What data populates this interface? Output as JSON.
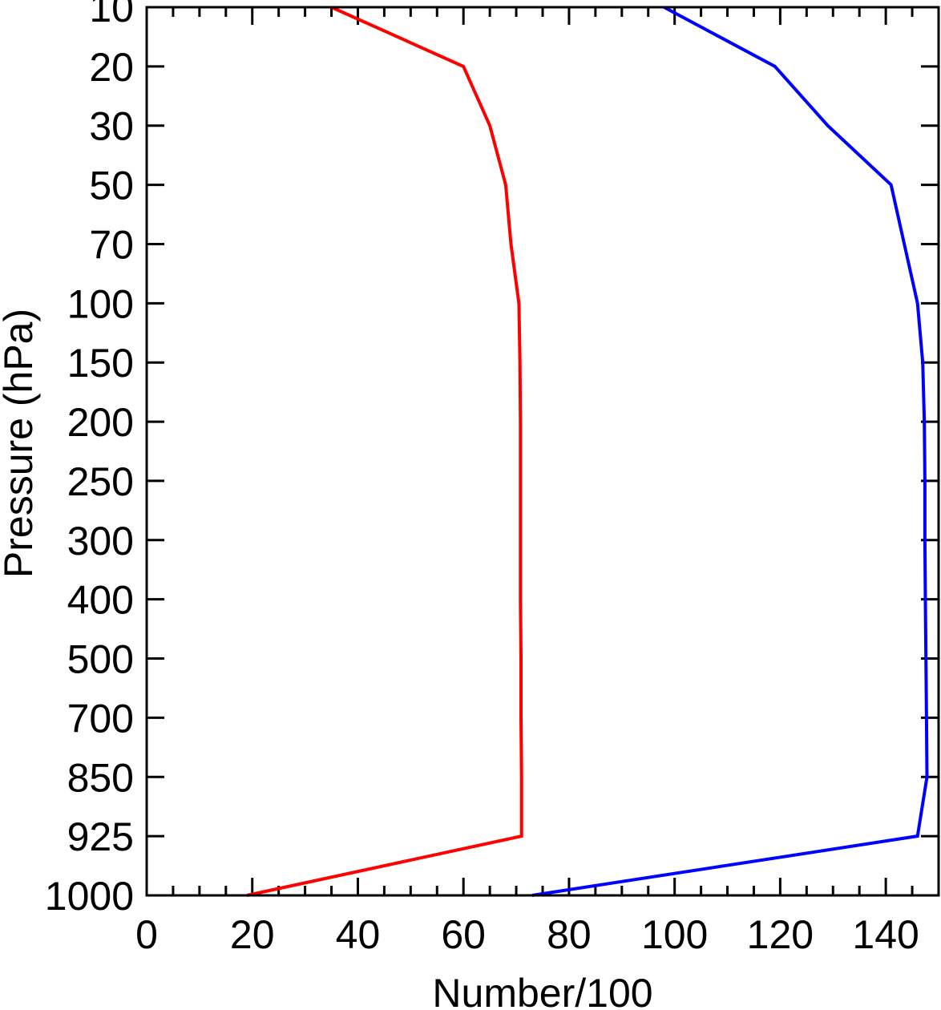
{
  "chart_data": {
    "type": "line",
    "title": "",
    "xlabel": "Number/100",
    "ylabel": "Pressure (hPa)",
    "xlim": [
      0,
      150
    ],
    "x_ticks": [
      0,
      20,
      40,
      60,
      80,
      100,
      120,
      140
    ],
    "x_tick_labels": [
      "0",
      "20",
      "40",
      "60",
      "80",
      "100",
      "120",
      "140"
    ],
    "y_levels": [
      10,
      20,
      30,
      50,
      70,
      100,
      150,
      200,
      250,
      300,
      400,
      500,
      700,
      850,
      925,
      1000
    ],
    "y_tick_labels": [
      "10",
      "20",
      "30",
      "50",
      "70",
      "100",
      "150",
      "200",
      "250",
      "300",
      "400",
      "500",
      "700",
      "850",
      "925",
      "1000"
    ],
    "y_order": "top-to-bottom",
    "grid": false,
    "legend": "none",
    "series": [
      {
        "color": "#ff0000",
        "pressure": [
          10,
          20,
          30,
          50,
          70,
          100,
          150,
          200,
          250,
          300,
          400,
          500,
          700,
          850,
          925,
          1000
        ],
        "values": [
          35,
          60,
          65,
          68,
          69,
          70.5,
          70.7,
          70.8,
          70.8,
          70.8,
          70.8,
          70.9,
          70.9,
          71,
          71,
          19
        ]
      },
      {
        "color": "#0000ff",
        "pressure": [
          10,
          20,
          30,
          50,
          70,
          100,
          150,
          200,
          250,
          300,
          400,
          500,
          700,
          850,
          925,
          1000
        ],
        "values": [
          98,
          119,
          129,
          141,
          143.5,
          146,
          147,
          147.3,
          147.4,
          147.4,
          147.5,
          147.6,
          147.7,
          147.8,
          146,
          73
        ]
      }
    ]
  }
}
